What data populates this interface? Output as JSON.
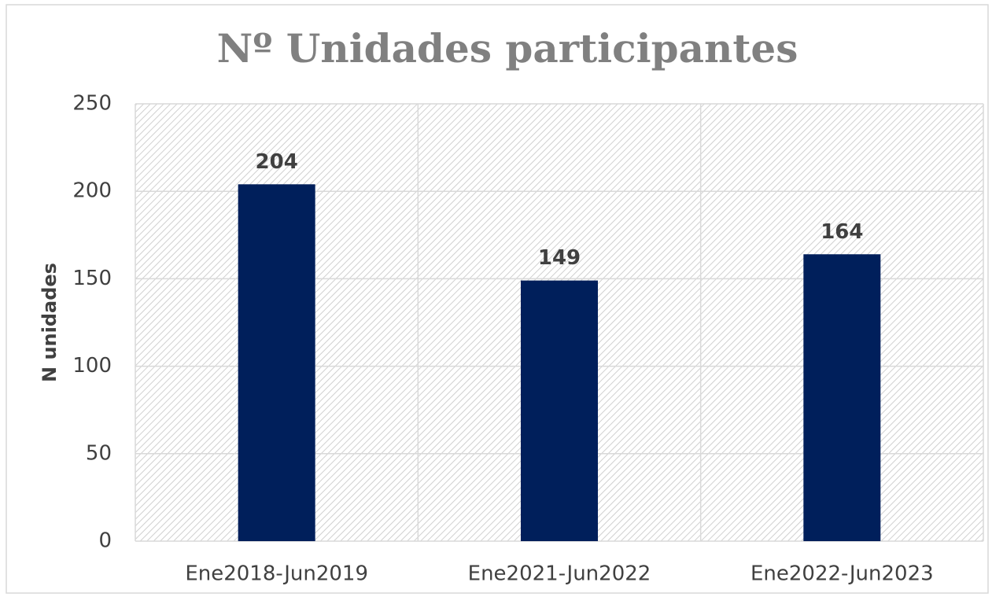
{
  "chart_data": {
    "type": "bar",
    "title": "Nº Unidades participantes",
    "y_label": "N unidades",
    "categories": [
      "Ene2018-Jun2019",
      "Ene2021-Jun2022",
      "Ene2022-Jun2023"
    ],
    "values": [
      204,
      149,
      164
    ],
    "color": "#001f5b",
    "ylim": [
      0,
      250
    ],
    "yticks": [
      0,
      50,
      100,
      150,
      200,
      250
    ],
    "grid": true
  }
}
